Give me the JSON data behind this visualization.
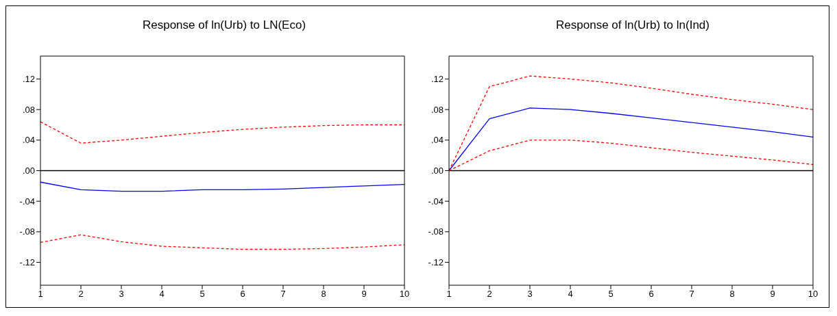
{
  "chart_data": [
    {
      "type": "line",
      "title": "Response of ln(Urb) to LN(Eco)",
      "categories": [
        "1",
        "2",
        "3",
        "4",
        "5",
        "6",
        "7",
        "8",
        "9",
        "10"
      ],
      "series": [
        {
          "color": "#ff0000",
          "line_style": "dashed",
          "values": [
            0.064,
            0.036,
            0.04,
            0.045,
            0.05,
            0.054,
            0.057,
            0.059,
            0.06,
            0.06
          ]
        },
        {
          "color": "#0000ff",
          "line_style": "solid",
          "values": [
            -0.015,
            -0.025,
            -0.027,
            -0.027,
            -0.025,
            -0.025,
            -0.024,
            -0.022,
            -0.02,
            -0.018
          ]
        },
        {
          "color": "#ff0000",
          "line_style": "dashed",
          "values": [
            -0.094,
            -0.084,
            -0.093,
            -0.099,
            -0.101,
            -0.103,
            -0.103,
            -0.102,
            -0.1,
            -0.097
          ]
        }
      ],
      "ylim": [
        -0.15,
        0.15
      ],
      "yticks": [
        {
          "value": -0.12,
          "label": "-.12"
        },
        {
          "value": -0.08,
          "label": "-.08"
        },
        {
          "value": -0.04,
          "label": "-.04"
        },
        {
          "value": 0,
          "label": ".00"
        },
        {
          "value": 0.04,
          "label": ".04"
        },
        {
          "value": 0.08,
          "label": ".08"
        },
        {
          "value": 0.12,
          "label": ".12"
        }
      ],
      "ref_lines": [
        {
          "axis": "y",
          "value": 0,
          "color": "#000000"
        }
      ],
      "grid": false,
      "legend": false
    },
    {
      "type": "line",
      "title": "Response of ln(Urb) to ln(Ind)",
      "categories": [
        "1",
        "2",
        "3",
        "4",
        "5",
        "6",
        "7",
        "8",
        "9",
        "10"
      ],
      "series": [
        {
          "color": "#ff0000",
          "line_style": "dashed",
          "values": [
            0,
            0.11,
            0.124,
            0.12,
            0.115,
            0.108,
            0.1,
            0.093,
            0.087,
            0.08
          ]
        },
        {
          "color": "#0000ff",
          "line_style": "solid",
          "values": [
            0,
            0.068,
            0.082,
            0.08,
            0.075,
            0.069,
            0.063,
            0.057,
            0.051,
            0.044
          ]
        },
        {
          "color": "#ff0000",
          "line_style": "dashed",
          "values": [
            0,
            0.026,
            0.04,
            0.04,
            0.036,
            0.03,
            0.024,
            0.019,
            0.014,
            0.008
          ]
        }
      ],
      "ylim": [
        -0.15,
        0.15
      ],
      "yticks": [
        {
          "value": -0.12,
          "label": "-.12"
        },
        {
          "value": -0.08,
          "label": "-.08"
        },
        {
          "value": -0.04,
          "label": "-.04"
        },
        {
          "value": 0,
          "label": ".00"
        },
        {
          "value": 0.04,
          "label": ".04"
        },
        {
          "value": 0.08,
          "label": ".08"
        },
        {
          "value": 0.12,
          "label": ".12"
        }
      ],
      "ref_lines": [
        {
          "axis": "y",
          "value": 0,
          "color": "#000000"
        }
      ],
      "grid": false,
      "legend": false
    }
  ]
}
